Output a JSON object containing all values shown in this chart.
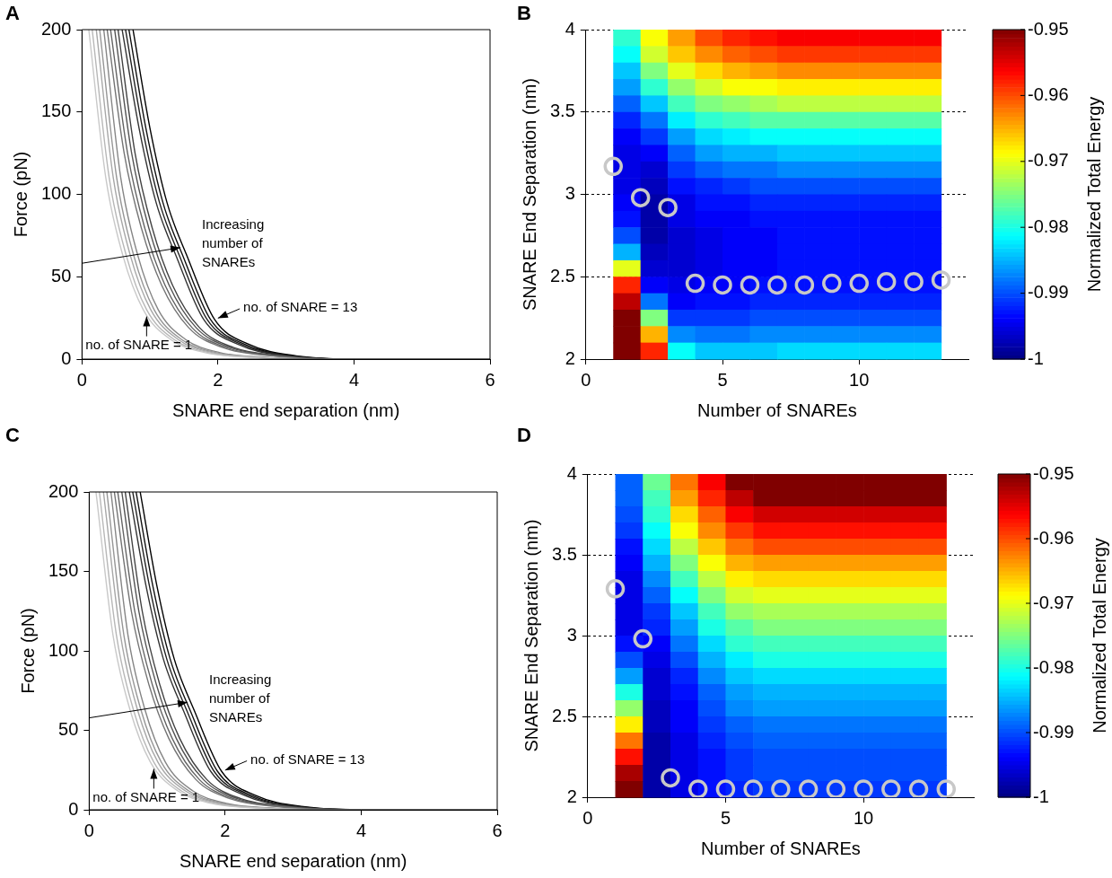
{
  "chart_data": [
    {
      "type": "line",
      "title": "A",
      "xlabel": "SNARE end separation (nm)",
      "ylabel": "Force (pN)",
      "xlim": [
        0,
        6
      ],
      "ylim": [
        0,
        200
      ],
      "xticks": [
        0,
        2,
        4,
        6
      ],
      "yticks": [
        0,
        50,
        100,
        150,
        200
      ],
      "annotations": [
        {
          "text": "Increasing number of SNAREs",
          "x": 1.5,
          "y": 68
        },
        {
          "text": "no. of SNARE = 13",
          "x": 1.95,
          "y": 24
        },
        {
          "text": "no. of SNARE = 1",
          "x": 0.95,
          "y": 28
        }
      ],
      "series": [
        {
          "color": "#c8c8c8",
          "x": [
            0.1,
            0.35,
            0.6,
            0.9,
            1.3,
            1.8,
            2.5,
            3.5,
            6
          ],
          "values": [
            200,
            110,
            63,
            30,
            12,
            4,
            1,
            0,
            0
          ]
        },
        {
          "color": "#b7b7b7",
          "x": [
            0.15,
            0.4,
            0.65,
            0.95,
            1.35,
            1.85,
            2.55,
            3.55,
            6
          ],
          "values": [
            200,
            110,
            63,
            30,
            12,
            4,
            1,
            0,
            0
          ]
        },
        {
          "color": "#a7a7a7",
          "x": [
            0.21,
            0.46,
            0.71,
            1.01,
            1.41,
            1.91,
            2.61,
            3.61,
            6
          ],
          "values": [
            200,
            110,
            63,
            30,
            12,
            4,
            1,
            0,
            0
          ]
        },
        {
          "color": "#969696",
          "x": [
            0.26,
            0.51,
            0.76,
            1.06,
            1.46,
            1.96,
            2.66,
            3.66,
            6
          ],
          "values": [
            200,
            110,
            63,
            30,
            12,
            4,
            1,
            0,
            0
          ]
        },
        {
          "color": "#858585",
          "x": [
            0.32,
            0.57,
            0.82,
            1.12,
            1.52,
            2.02,
            2.72,
            3.72,
            6
          ],
          "values": [
            200,
            110,
            63,
            30,
            12,
            4,
            1,
            0,
            0
          ]
        },
        {
          "color": "#747474",
          "x": [
            0.37,
            0.62,
            0.87,
            1.17,
            1.57,
            2.07,
            2.77,
            3.77,
            6
          ],
          "values": [
            200,
            125,
            80,
            45,
            19,
            7,
            2,
            0,
            0
          ]
        },
        {
          "color": "#646464",
          "x": [
            0.42,
            0.67,
            0.92,
            1.22,
            1.62,
            2.12,
            2.82,
            3.82,
            6
          ],
          "values": [
            200,
            125,
            80,
            45,
            19,
            7,
            2,
            0,
            0
          ]
        },
        {
          "color": "#535353",
          "x": [
            0.48,
            0.73,
            0.98,
            1.28,
            1.68,
            2.18,
            2.88,
            3.88,
            6
          ],
          "values": [
            200,
            125,
            80,
            45,
            19,
            7,
            2,
            0,
            0
          ]
        },
        {
          "color": "#424242",
          "x": [
            0.53,
            0.78,
            1.03,
            1.33,
            1.73,
            2.23,
            2.93,
            3.93,
            6
          ],
          "values": [
            200,
            125,
            80,
            45,
            19,
            7,
            2,
            0,
            0
          ]
        },
        {
          "color": "#323232",
          "x": [
            0.59,
            0.84,
            1.09,
            1.39,
            1.79,
            2.29,
            2.99,
            3.99,
            6
          ],
          "values": [
            200,
            140,
            95,
            62,
            24,
            9,
            2,
            0,
            0
          ]
        },
        {
          "color": "#212121",
          "x": [
            0.64,
            0.89,
            1.14,
            1.44,
            1.84,
            2.34,
            3.04,
            4.04,
            6
          ],
          "values": [
            200,
            140,
            95,
            62,
            24,
            9,
            2,
            0,
            0
          ]
        },
        {
          "color": "#111111",
          "x": [
            0.69,
            0.94,
            1.19,
            1.49,
            1.89,
            2.39,
            3.09,
            4.09,
            6
          ],
          "values": [
            200,
            140,
            95,
            62,
            24,
            9,
            2,
            0,
            0
          ]
        },
        {
          "color": "#000000",
          "x": [
            0.75,
            1.0,
            1.25,
            1.55,
            1.95,
            2.45,
            3.15,
            4.15,
            6
          ],
          "values": [
            200,
            140,
            95,
            62,
            24,
            9,
            2,
            0,
            0
          ]
        }
      ]
    },
    {
      "type": "heatmap",
      "title": "B",
      "xlabel": "Number of SNAREs",
      "ylabel": "SNARE End Separation (nm)",
      "clabel": "Normalized Total Energy",
      "xlim": [
        0,
        14
      ],
      "ylim": [
        2,
        4
      ],
      "xticks": [
        0,
        5,
        10
      ],
      "yticks": [
        2,
        2.5,
        3,
        3.5,
        4
      ],
      "grid": "y",
      "clim": [
        -1,
        -0.95
      ],
      "cticks": [
        -1,
        -0.99,
        -0.98,
        -0.97,
        -0.96,
        -0.95
      ],
      "marker": "circle",
      "x": [
        1.5,
        2.5,
        3.5,
        4.5,
        5.5,
        6.5,
        7.5,
        8.5,
        9.5,
        10.5,
        11.5,
        12.5
      ],
      "cells": [
        [
          -0.979,
          -0.969,
          -0.964,
          -0.96,
          -0.958,
          -0.957,
          -0.956,
          -0.956,
          -0.956,
          -0.956,
          -0.956,
          -0.956
        ],
        [
          -0.981,
          -0.971,
          -0.966,
          -0.963,
          -0.961,
          -0.96,
          -0.959,
          -0.959,
          -0.959,
          -0.959,
          -0.959,
          -0.959
        ],
        [
          -0.984,
          -0.975,
          -0.97,
          -0.967,
          -0.965,
          -0.964,
          -0.963,
          -0.963,
          -0.963,
          -0.963,
          -0.963,
          -0.963
        ],
        [
          -0.986,
          -0.979,
          -0.974,
          -0.971,
          -0.969,
          -0.969,
          -0.968,
          -0.968,
          -0.968,
          -0.968,
          -0.968,
          -0.968
        ],
        [
          -0.989,
          -0.984,
          -0.978,
          -0.975,
          -0.974,
          -0.973,
          -0.972,
          -0.972,
          -0.972,
          -0.972,
          -0.972,
          -0.972
        ],
        [
          -0.992,
          -0.988,
          -0.982,
          -0.979,
          -0.978,
          -0.977,
          -0.977,
          -0.977,
          -0.977,
          -0.977,
          -0.977,
          -0.977
        ],
        [
          -0.994,
          -0.991,
          -0.986,
          -0.983,
          -0.982,
          -0.981,
          -0.981,
          -0.981,
          -0.981,
          -0.981,
          -0.981,
          -0.981
        ],
        [
          -0.995,
          -0.994,
          -0.989,
          -0.986,
          -0.985,
          -0.985,
          -0.984,
          -0.984,
          -0.984,
          -0.984,
          -0.984,
          -0.984
        ],
        [
          -0.995,
          -0.996,
          -0.991,
          -0.989,
          -0.988,
          -0.988,
          -0.987,
          -0.987,
          -0.987,
          -0.987,
          -0.987,
          -0.987
        ],
        [
          -0.995,
          -0.997,
          -0.993,
          -0.992,
          -0.991,
          -0.99,
          -0.99,
          -0.99,
          -0.99,
          -0.99,
          -0.99,
          -0.99
        ],
        [
          -0.994,
          -0.998,
          -0.995,
          -0.993,
          -0.993,
          -0.992,
          -0.992,
          -0.992,
          -0.992,
          -0.992,
          -0.992,
          -0.992
        ],
        [
          -0.993,
          -0.998,
          -0.995,
          -0.994,
          -0.994,
          -0.993,
          -0.993,
          -0.993,
          -0.993,
          -0.993,
          -0.993,
          -0.993
        ],
        [
          -0.99,
          -0.998,
          -0.996,
          -0.995,
          -0.994,
          -0.994,
          -0.993,
          -0.993,
          -0.993,
          -0.993,
          -0.993,
          -0.993
        ],
        [
          -0.985,
          -0.997,
          -0.996,
          -0.995,
          -0.994,
          -0.994,
          -0.993,
          -0.993,
          -0.993,
          -0.993,
          -0.993,
          -0.993
        ],
        [
          -0.97,
          -0.996,
          -0.996,
          -0.995,
          -0.994,
          -0.994,
          -0.993,
          -0.993,
          -0.993,
          -0.993,
          -0.993,
          -0.993
        ],
        [
          -0.958,
          -0.994,
          -0.995,
          -0.994,
          -0.994,
          -0.993,
          -0.993,
          -0.993,
          -0.993,
          -0.993,
          -0.993,
          -0.993
        ],
        [
          -0.953,
          -0.988,
          -0.994,
          -0.993,
          -0.993,
          -0.992,
          -0.992,
          -0.992,
          -0.992,
          -0.992,
          -0.992,
          -0.992
        ],
        [
          -0.95,
          -0.975,
          -0.991,
          -0.991,
          -0.991,
          -0.99,
          -0.99,
          -0.99,
          -0.99,
          -0.99,
          -0.99,
          -0.99
        ],
        [
          -0.95,
          -0.965,
          -0.987,
          -0.988,
          -0.988,
          -0.987,
          -0.987,
          -0.987,
          -0.987,
          -0.987,
          -0.987,
          -0.987
        ],
        [
          -0.95,
          -0.958,
          -0.981,
          -0.984,
          -0.984,
          -0.984,
          -0.983,
          -0.983,
          -0.983,
          -0.983,
          -0.983,
          -0.983
        ]
      ],
      "series": [
        {
          "type": "scatter",
          "color": "#c8c8c8",
          "x": [
            1,
            2,
            3,
            4,
            5,
            6,
            7,
            8,
            9,
            10,
            11,
            12,
            13
          ],
          "values": [
            3.17,
            2.98,
            2.92,
            2.46,
            2.45,
            2.45,
            2.45,
            2.45,
            2.46,
            2.46,
            2.47,
            2.47,
            2.48
          ]
        }
      ]
    },
    {
      "type": "line",
      "title": "C",
      "xlabel": "SNARE end separation (nm)",
      "ylabel": "Force (pN)",
      "xlim": [
        0,
        6
      ],
      "ylim": [
        0,
        200
      ],
      "xticks": [
        0,
        2,
        4,
        6
      ],
      "yticks": [
        0,
        50,
        100,
        150,
        200
      ],
      "annotations": [
        {
          "text": "Increasing number of SNAREs",
          "x": 1.5,
          "y": 68
        },
        {
          "text": "no. of SNARE = 13",
          "x": 1.95,
          "y": 24
        },
        {
          "text": "no. of SNARE = 1",
          "x": 0.95,
          "y": 28
        }
      ],
      "series": [
        {
          "color": "#c8c8c8",
          "x": [
            0.1,
            0.35,
            0.6,
            0.9,
            1.3,
            1.8,
            2.5,
            3.5,
            6
          ],
          "values": [
            200,
            110,
            63,
            30,
            12,
            4,
            1,
            0,
            0
          ]
        },
        {
          "color": "#b7b7b7",
          "x": [
            0.15,
            0.4,
            0.65,
            0.95,
            1.35,
            1.85,
            2.55,
            3.55,
            6
          ],
          "values": [
            200,
            110,
            63,
            30,
            12,
            4,
            1,
            0,
            0
          ]
        },
        {
          "color": "#a7a7a7",
          "x": [
            0.21,
            0.46,
            0.71,
            1.01,
            1.41,
            1.91,
            2.61,
            3.61,
            6
          ],
          "values": [
            200,
            110,
            63,
            30,
            12,
            4,
            1,
            0,
            0
          ]
        },
        {
          "color": "#969696",
          "x": [
            0.26,
            0.51,
            0.76,
            1.06,
            1.46,
            1.96,
            2.66,
            3.66,
            6
          ],
          "values": [
            200,
            110,
            63,
            30,
            12,
            4,
            1,
            0,
            0
          ]
        },
        {
          "color": "#858585",
          "x": [
            0.32,
            0.57,
            0.82,
            1.12,
            1.52,
            2.02,
            2.72,
            3.72,
            6
          ],
          "values": [
            200,
            110,
            63,
            30,
            12,
            4,
            1,
            0,
            0
          ]
        },
        {
          "color": "#747474",
          "x": [
            0.37,
            0.62,
            0.87,
            1.17,
            1.57,
            2.07,
            2.77,
            3.77,
            6
          ],
          "values": [
            200,
            125,
            80,
            45,
            19,
            7,
            2,
            0,
            0
          ]
        },
        {
          "color": "#646464",
          "x": [
            0.42,
            0.67,
            0.92,
            1.22,
            1.62,
            2.12,
            2.82,
            3.82,
            6
          ],
          "values": [
            200,
            125,
            80,
            45,
            19,
            7,
            2,
            0,
            0
          ]
        },
        {
          "color": "#535353",
          "x": [
            0.48,
            0.73,
            0.98,
            1.28,
            1.68,
            2.18,
            2.88,
            3.88,
            6
          ],
          "values": [
            200,
            125,
            80,
            45,
            19,
            7,
            2,
            0,
            0
          ]
        },
        {
          "color": "#424242",
          "x": [
            0.53,
            0.78,
            1.03,
            1.33,
            1.73,
            2.23,
            2.93,
            3.93,
            6
          ],
          "values": [
            200,
            125,
            80,
            45,
            19,
            7,
            2,
            0,
            0
          ]
        },
        {
          "color": "#323232",
          "x": [
            0.59,
            0.84,
            1.09,
            1.39,
            1.79,
            2.29,
            2.99,
            3.99,
            6
          ],
          "values": [
            200,
            140,
            95,
            62,
            24,
            9,
            2,
            0,
            0
          ]
        },
        {
          "color": "#212121",
          "x": [
            0.64,
            0.89,
            1.14,
            1.44,
            1.84,
            2.34,
            3.04,
            4.04,
            6
          ],
          "values": [
            200,
            140,
            95,
            62,
            24,
            9,
            2,
            0,
            0
          ]
        },
        {
          "color": "#111111",
          "x": [
            0.69,
            0.94,
            1.19,
            1.49,
            1.89,
            2.39,
            3.09,
            4.09,
            6
          ],
          "values": [
            200,
            140,
            95,
            62,
            24,
            9,
            2,
            0,
            0
          ]
        },
        {
          "color": "#000000",
          "x": [
            0.75,
            1.0,
            1.25,
            1.55,
            1.95,
            2.45,
            3.15,
            4.15,
            6
          ],
          "values": [
            200,
            140,
            95,
            62,
            24,
            9,
            2,
            0,
            0
          ]
        }
      ]
    },
    {
      "type": "heatmap",
      "title": "D",
      "xlabel": "Number of SNAREs",
      "ylabel": "SNARE End Separation (nm)",
      "clabel": "Normalized Total Energy",
      "xlim": [
        0,
        14
      ],
      "ylim": [
        2,
        4
      ],
      "xticks": [
        0,
        5,
        10
      ],
      "yticks": [
        2,
        2.5,
        3,
        3.5,
        4
      ],
      "grid": "y",
      "clim": [
        -1,
        -0.95
      ],
      "cticks": [
        -1,
        -0.99,
        -0.98,
        -0.97,
        -0.96,
        -0.95
      ],
      "marker": "circle",
      "x": [
        1.5,
        2.5,
        3.5,
        4.5,
        5.5,
        6.5,
        7.5,
        8.5,
        9.5,
        10.5,
        11.5,
        12.5
      ],
      "cells": [
        [
          -0.989,
          -0.976,
          -0.962,
          -0.956,
          -0.95,
          -0.95,
          -0.95,
          -0.95,
          -0.95,
          -0.95,
          -0.95,
          -0.95
        ],
        [
          -0.989,
          -0.978,
          -0.964,
          -0.958,
          -0.953,
          -0.95,
          -0.95,
          -0.95,
          -0.95,
          -0.95,
          -0.95,
          -0.95
        ],
        [
          -0.99,
          -0.979,
          -0.967,
          -0.961,
          -0.956,
          -0.954,
          -0.954,
          -0.954,
          -0.954,
          -0.954,
          -0.954,
          -0.954
        ],
        [
          -0.991,
          -0.981,
          -0.969,
          -0.963,
          -0.959,
          -0.957,
          -0.957,
          -0.957,
          -0.957,
          -0.957,
          -0.957,
          -0.957
        ],
        [
          -0.993,
          -0.983,
          -0.972,
          -0.966,
          -0.962,
          -0.96,
          -0.96,
          -0.96,
          -0.96,
          -0.96,
          -0.96,
          -0.96
        ],
        [
          -0.994,
          -0.985,
          -0.975,
          -0.969,
          -0.965,
          -0.964,
          -0.964,
          -0.964,
          -0.964,
          -0.964,
          -0.964,
          -0.964
        ],
        [
          -0.995,
          -0.987,
          -0.978,
          -0.972,
          -0.968,
          -0.967,
          -0.967,
          -0.967,
          -0.967,
          -0.967,
          -0.967,
          -0.967
        ],
        [
          -0.995,
          -0.989,
          -0.981,
          -0.975,
          -0.971,
          -0.97,
          -0.97,
          -0.97,
          -0.97,
          -0.97,
          -0.97,
          -0.97
        ],
        [
          -0.995,
          -0.991,
          -0.984,
          -0.978,
          -0.974,
          -0.973,
          -0.973,
          -0.973,
          -0.973,
          -0.973,
          -0.973,
          -0.973
        ],
        [
          -0.995,
          -0.992,
          -0.986,
          -0.98,
          -0.977,
          -0.975,
          -0.975,
          -0.975,
          -0.975,
          -0.975,
          -0.975,
          -0.975
        ],
        [
          -0.993,
          -0.994,
          -0.988,
          -0.983,
          -0.979,
          -0.978,
          -0.978,
          -0.978,
          -0.978,
          -0.978,
          -0.978,
          -0.978
        ],
        [
          -0.99,
          -0.995,
          -0.99,
          -0.985,
          -0.982,
          -0.98,
          -0.98,
          -0.98,
          -0.98,
          -0.98,
          -0.98,
          -0.98
        ],
        [
          -0.986,
          -0.996,
          -0.992,
          -0.987,
          -0.984,
          -0.983,
          -0.983,
          -0.983,
          -0.983,
          -0.983,
          -0.983,
          -0.983
        ],
        [
          -0.98,
          -0.996,
          -0.993,
          -0.989,
          -0.986,
          -0.985,
          -0.985,
          -0.985,
          -0.985,
          -0.985,
          -0.985,
          -0.985
        ],
        [
          -0.974,
          -0.997,
          -0.994,
          -0.99,
          -0.987,
          -0.986,
          -0.986,
          -0.986,
          -0.986,
          -0.986,
          -0.986,
          -0.986
        ],
        [
          -0.968,
          -0.997,
          -0.994,
          -0.991,
          -0.989,
          -0.988,
          -0.988,
          -0.988,
          -0.988,
          -0.988,
          -0.988,
          -0.988
        ],
        [
          -0.962,
          -0.998,
          -0.995,
          -0.992,
          -0.99,
          -0.989,
          -0.989,
          -0.989,
          -0.989,
          -0.989,
          -0.989,
          -0.989
        ],
        [
          -0.957,
          -0.998,
          -0.995,
          -0.993,
          -0.991,
          -0.99,
          -0.99,
          -0.99,
          -0.99,
          -0.99,
          -0.99,
          -0.99
        ],
        [
          -0.952,
          -0.998,
          -0.995,
          -0.993,
          -0.991,
          -0.99,
          -0.99,
          -0.99,
          -0.99,
          -0.99,
          -0.99,
          -0.99
        ],
        [
          -0.95,
          -0.998,
          -0.995,
          -0.993,
          -0.992,
          -0.991,
          -0.991,
          -0.991,
          -0.991,
          -0.991,
          -0.991,
          -0.991
        ]
      ],
      "series": [
        {
          "type": "scatter",
          "color": "#c8c8c8",
          "x": [
            1,
            2,
            3,
            4,
            5,
            6,
            7,
            8,
            9,
            10,
            11,
            12,
            13
          ],
          "values": [
            3.29,
            2.98,
            2.12,
            2.05,
            2.05,
            2.05,
            2.05,
            2.05,
            2.05,
            2.05,
            2.05,
            2.05,
            2.05
          ]
        }
      ]
    }
  ]
}
